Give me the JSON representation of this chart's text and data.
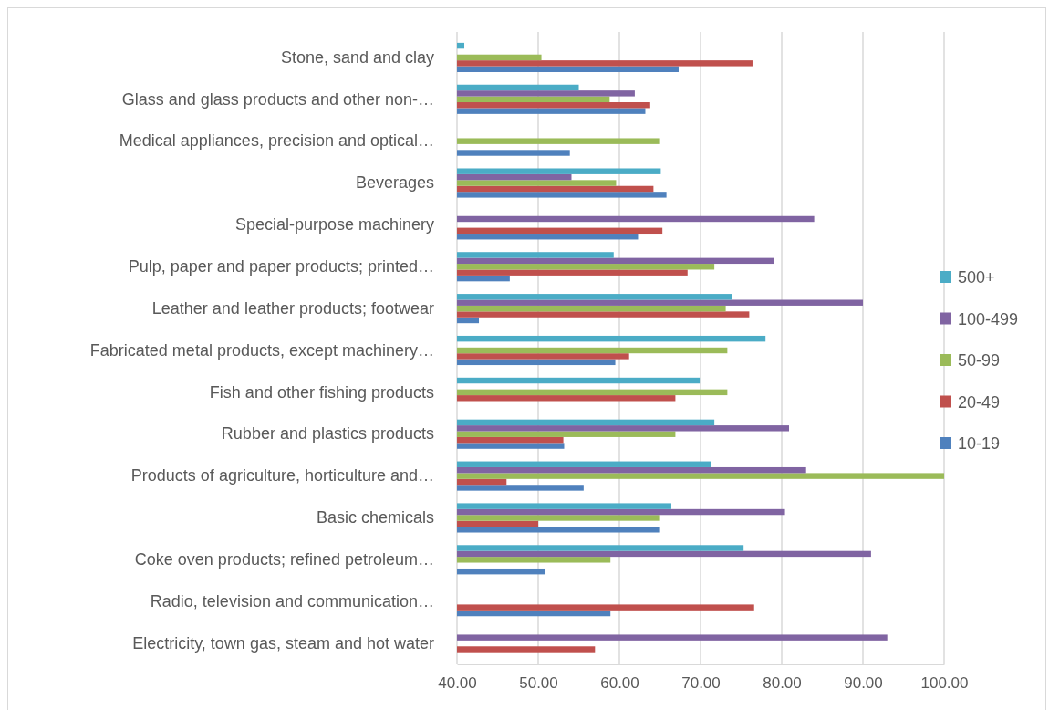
{
  "chart_data": {
    "type": "bar",
    "orientation": "horizontal",
    "categories": [
      "Stone, sand and clay",
      "Glass and glass products and other non-…",
      "Medical appliances, precision and optical…",
      "Beverages",
      "Special-purpose machinery",
      "Pulp, paper and paper products; printed…",
      "Leather and leather products; footwear",
      "Fabricated metal products, except machinery…",
      "Fish and other fishing products",
      "Rubber and plastics products",
      "Products of agriculture, horticulture and…",
      "Basic chemicals",
      "Coke oven products; refined petroleum…",
      "Radio, television and communication…",
      "Electricity, town gas, steam and hot water"
    ],
    "series": [
      {
        "name": "10-19",
        "color": "#4f81bd",
        "values": [
          67.3,
          63.2,
          53.9,
          65.8,
          62.3,
          46.5,
          42.7,
          59.5,
          null,
          53.2,
          55.6,
          64.9,
          50.9,
          58.9,
          null
        ]
      },
      {
        "name": "20-49",
        "color": "#c0504d",
        "values": [
          76.4,
          63.8,
          null,
          64.2,
          65.3,
          68.4,
          76.0,
          61.2,
          66.9,
          53.1,
          46.1,
          50.0,
          null,
          76.6,
          57.0
        ]
      },
      {
        "name": "50-99",
        "color": "#9bbb59",
        "values": [
          50.4,
          58.8,
          64.9,
          59.6,
          null,
          71.7,
          73.1,
          73.3,
          73.3,
          66.9,
          100,
          64.9,
          58.9,
          null,
          null
        ]
      },
      {
        "name": "100-499",
        "color": "#8064a2",
        "values": [
          null,
          61.9,
          null,
          54.1,
          84.0,
          79.0,
          90.0,
          null,
          null,
          80.9,
          83.0,
          80.4,
          91.0,
          null,
          93.0
        ]
      },
      {
        "name": "500+",
        "color": "#4bacc6",
        "values": [
          40.9,
          55.0,
          null,
          65.1,
          null,
          59.3,
          73.9,
          78.0,
          69.9,
          71.7,
          71.3,
          66.4,
          75.3,
          null,
          null
        ]
      }
    ],
    "xlim": [
      40,
      100
    ],
    "xticks": [
      {
        "value": 40,
        "label": "40.00"
      },
      {
        "value": 50,
        "label": "50.00"
      },
      {
        "value": 60,
        "label": "60.00"
      },
      {
        "value": 70,
        "label": "70.00"
      },
      {
        "value": 80,
        "label": "80.00"
      },
      {
        "value": 90,
        "label": "90.00"
      },
      {
        "value": 100,
        "label": "100.00"
      }
    ],
    "grid": "x",
    "legend": "right"
  }
}
